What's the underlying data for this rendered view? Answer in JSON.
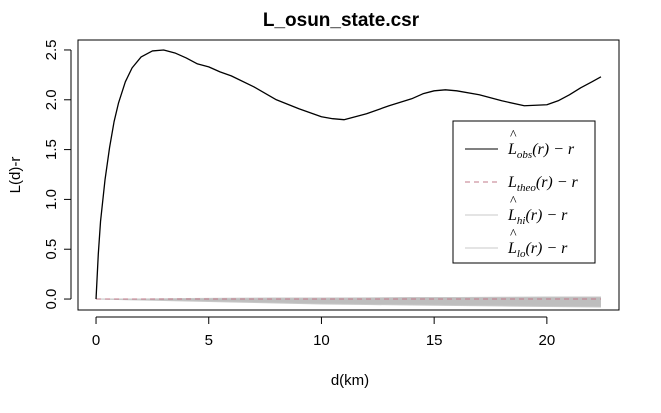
{
  "chart_data": {
    "type": "line",
    "title": "L_osun_state.csr",
    "xlabel": "d(km)",
    "ylabel": "L(d)-r",
    "xlim": [
      -0.8,
      23.2
    ],
    "ylim": [
      -0.11,
      2.6
    ],
    "x_ticks": [
      0,
      5,
      10,
      15,
      20
    ],
    "x_tick_labels": [
      "0",
      "5",
      "10",
      "15",
      "20"
    ],
    "y_ticks": [
      0.0,
      0.5,
      1.0,
      1.5,
      2.0,
      2.5
    ],
    "y_tick_labels": [
      "0.0",
      "0.5",
      "1.0",
      "1.5",
      "2.0",
      "2.5"
    ],
    "grid": false,
    "legend_position": "right",
    "series": [
      {
        "name": "L_obs(r) - r",
        "legend_main": "L",
        "legend_hat": "^",
        "legend_sub": "obs",
        "legend_rest": "(r) − r",
        "color": "#000000",
        "dash": "solid",
        "x": [
          0,
          0.1,
          0.2,
          0.4,
          0.6,
          0.8,
          1.0,
          1.3,
          1.6,
          2.0,
          2.5,
          3.0,
          3.5,
          4.0,
          4.5,
          5.0,
          5.5,
          6.0,
          7.0,
          8.0,
          9.0,
          10.0,
          10.5,
          11.0,
          11.5,
          12.0,
          13.0,
          14.0,
          14.5,
          15.0,
          15.5,
          16.0,
          17.0,
          18.0,
          19.0,
          20.0,
          20.5,
          21.0,
          21.5,
          22.0,
          22.4
        ],
        "y": [
          0,
          0.45,
          0.78,
          1.2,
          1.52,
          1.78,
          1.97,
          2.18,
          2.32,
          2.43,
          2.49,
          2.5,
          2.47,
          2.42,
          2.36,
          2.33,
          2.28,
          2.24,
          2.13,
          2.0,
          1.91,
          1.83,
          1.81,
          1.8,
          1.83,
          1.86,
          1.94,
          2.01,
          2.06,
          2.09,
          2.1,
          2.09,
          2.05,
          1.99,
          1.94,
          1.95,
          1.99,
          2.05,
          2.12,
          2.18,
          2.23
        ]
      },
      {
        "name": "L_theo(r) - r",
        "legend_main": "L",
        "legend_hat": "",
        "legend_sub": "theo",
        "legend_rest": "(r) − r",
        "color": "#c27a8a",
        "dash": "dashed",
        "x": [
          0,
          22.4
        ],
        "y": [
          0,
          0
        ]
      },
      {
        "name": "L_hi(r) - r",
        "legend_main": "L",
        "legend_hat": "^",
        "legend_sub": "hi",
        "legend_rest": "(r) − r",
        "color": "#c8c8c8",
        "dash": "solid",
        "x": [
          0,
          2,
          4,
          6,
          8,
          10,
          12,
          14,
          16,
          18,
          20,
          22.4
        ],
        "y": [
          0,
          0.0,
          0.005,
          0.008,
          0.01,
          0.01,
          0.012,
          0.015,
          0.015,
          0.018,
          0.02,
          0.02
        ]
      },
      {
        "name": "L_lo(r) - r",
        "legend_main": "L",
        "legend_hat": "^",
        "legend_sub": "lo",
        "legend_rest": "(r) − r",
        "color": "#c8c8c8",
        "dash": "solid",
        "x": [
          0,
          2,
          4,
          6,
          8,
          10,
          12,
          14,
          16,
          18,
          20,
          22.4
        ],
        "y": [
          0,
          -0.01,
          -0.02,
          -0.03,
          -0.04,
          -0.05,
          -0.055,
          -0.06,
          -0.065,
          -0.07,
          -0.075,
          -0.08
        ]
      }
    ]
  }
}
